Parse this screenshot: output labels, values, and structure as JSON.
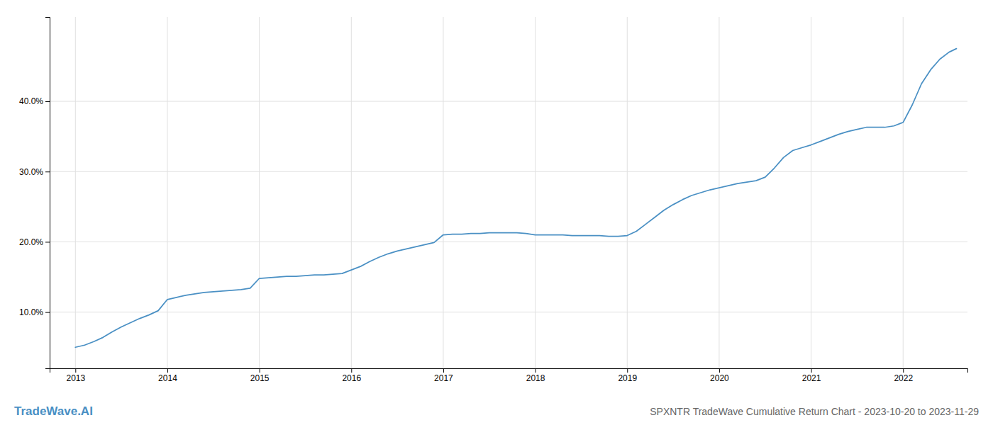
{
  "chart_data": {
    "type": "line",
    "title": "SPXNTR TradeWave Cumulative Return Chart - 2023-10-20 to 2023-11-29",
    "annotations": [
      "TradeWave.AI"
    ],
    "color": "#4a90c4",
    "grid": true,
    "x": [
      2013.0,
      2013.1,
      2013.2,
      2013.3,
      2013.4,
      2013.5,
      2013.6,
      2013.7,
      2013.8,
      2013.9,
      2014.0,
      2014.1,
      2014.2,
      2014.3,
      2014.4,
      2014.5,
      2014.6,
      2014.7,
      2014.8,
      2014.9,
      2015.0,
      2015.1,
      2015.2,
      2015.3,
      2015.4,
      2015.5,
      2015.6,
      2015.7,
      2015.8,
      2015.9,
      2016.0,
      2016.1,
      2016.2,
      2016.3,
      2016.4,
      2016.5,
      2016.6,
      2016.7,
      2016.8,
      2016.9,
      2017.0,
      2017.1,
      2017.2,
      2017.3,
      2017.4,
      2017.5,
      2017.6,
      2017.7,
      2017.8,
      2017.9,
      2018.0,
      2018.1,
      2018.2,
      2018.3,
      2018.4,
      2018.5,
      2018.6,
      2018.7,
      2018.8,
      2018.9,
      2019.0,
      2019.1,
      2019.2,
      2019.3,
      2019.4,
      2019.5,
      2019.6,
      2019.7,
      2019.8,
      2019.9,
      2020.0,
      2020.1,
      2020.2,
      2020.3,
      2020.4,
      2020.5,
      2020.6,
      2020.7,
      2020.8,
      2020.9,
      2021.0,
      2021.1,
      2021.2,
      2021.3,
      2021.4,
      2021.5,
      2021.6,
      2021.7,
      2021.8,
      2021.9,
      2022.0,
      2022.1,
      2022.2,
      2022.3,
      2022.4,
      2022.5,
      2022.58
    ],
    "values": [
      5.0,
      5.3,
      5.8,
      6.4,
      7.2,
      7.9,
      8.5,
      9.1,
      9.6,
      10.2,
      11.8,
      12.1,
      12.4,
      12.6,
      12.8,
      12.9,
      13.0,
      13.1,
      13.2,
      13.4,
      14.8,
      14.9,
      15.0,
      15.1,
      15.1,
      15.2,
      15.3,
      15.3,
      15.4,
      15.5,
      16.0,
      16.5,
      17.2,
      17.8,
      18.3,
      18.7,
      19.0,
      19.3,
      19.6,
      19.9,
      21.0,
      21.1,
      21.1,
      21.2,
      21.2,
      21.3,
      21.3,
      21.3,
      21.3,
      21.2,
      21.0,
      21.0,
      21.0,
      21.0,
      20.9,
      20.9,
      20.9,
      20.9,
      20.8,
      20.8,
      20.9,
      21.5,
      22.5,
      23.5,
      24.5,
      25.3,
      26.0,
      26.6,
      27.0,
      27.4,
      27.7,
      28.0,
      28.3,
      28.5,
      28.7,
      29.2,
      30.5,
      32.0,
      33.0,
      33.4,
      33.8,
      34.3,
      34.8,
      35.3,
      35.7,
      36.0,
      36.3,
      36.3,
      36.3,
      36.5,
      37.0,
      39.5,
      42.5,
      44.5,
      46.0,
      47.0,
      47.5
    ],
    "xlim": [
      2012.72,
      2022.7
    ],
    "ylim": [
      2.0,
      52.0
    ],
    "xticks": [
      2013,
      2014,
      2015,
      2016,
      2017,
      2018,
      2019,
      2020,
      2021,
      2022
    ],
    "yticks": [
      {
        "value": 10.0,
        "label": "10.0%"
      },
      {
        "value": 20.0,
        "label": "20.0%"
      },
      {
        "value": 30.0,
        "label": "30.0%"
      },
      {
        "value": 40.0,
        "label": "40.0%"
      }
    ]
  }
}
